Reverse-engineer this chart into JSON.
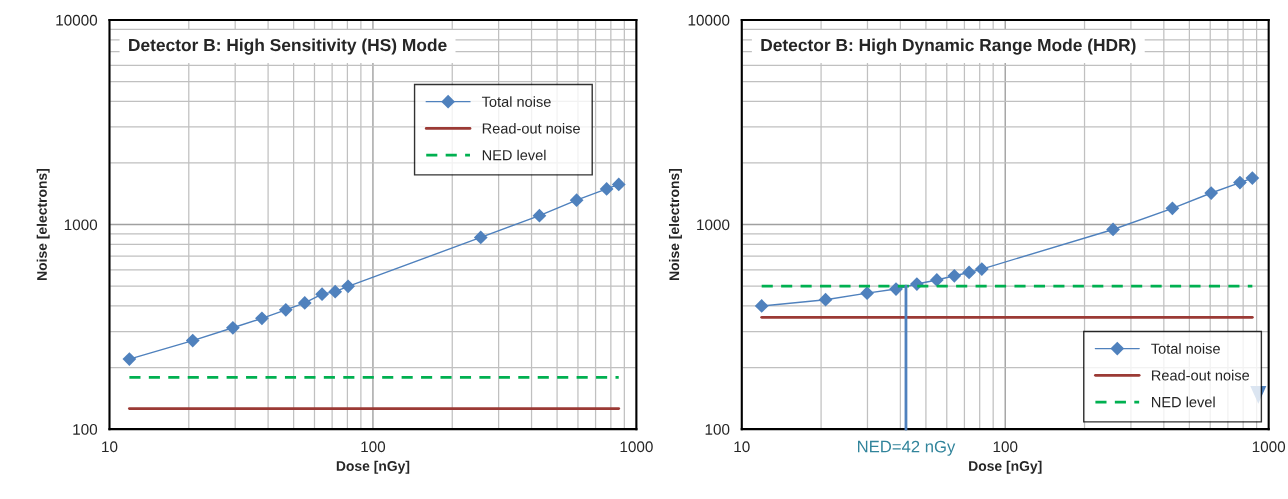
{
  "chart_data": [
    {
      "type": "line",
      "title": "Detector B: High Sensitivity (HS) Mode",
      "xlabel": "Dose [nGy]",
      "ylabel": "Noise [electrons]",
      "log": "xy",
      "xlim": [
        10,
        1000
      ],
      "xticks": [
        10,
        100,
        1000
      ],
      "ylim": [
        100,
        10000
      ],
      "yticks": [
        100,
        1000,
        10000
      ],
      "grid": true,
      "legend": "top right",
      "series": [
        {
          "name": "Total noise",
          "color": "#4f81bd",
          "marker": "diamond",
          "line_style": "solid",
          "x": [
            11.9,
            20.7,
            29.4,
            37.9,
            46.7,
            55.1,
            64.1,
            71.9,
            80.5,
            256.6,
            428.5,
            593,
            771,
            857
          ],
          "values": [
            220,
            271,
            313,
            348,
            383,
            414,
            457,
            470,
            499,
            865,
            1105,
            1315,
            1493,
            1570
          ]
        },
        {
          "name": "Read-out noise",
          "color": "#9b3a35",
          "marker": "none",
          "line_style": "solid",
          "x": [
            11.9,
            857
          ],
          "values": [
            126,
            126
          ]
        },
        {
          "name": "NED level",
          "color": "#00b050",
          "marker": "none",
          "line_style": "dashed",
          "x": [
            11.9,
            857
          ],
          "values": [
            179,
            179
          ]
        }
      ]
    },
    {
      "type": "line",
      "title": "Detector B: High Dynamic Range Mode (HDR)",
      "xlabel": "Dose [nGy]",
      "ylabel": "Noise [electrons]",
      "log": "xy",
      "xlim": [
        10,
        1000
      ],
      "xticks": [
        10,
        100,
        1000
      ],
      "ylim": [
        100,
        10000
      ],
      "yticks": [
        100,
        1000,
        10000
      ],
      "grid": true,
      "legend": "bottom right",
      "ref_lines": [
        {
          "axis": "x",
          "value": 42,
          "label": "NED=42 nGy",
          "color": "#4f81bd"
        }
      ],
      "series": [
        {
          "name": "Total noise",
          "color": "#4f81bd",
          "marker": "diamond",
          "line_style": "solid",
          "x": [
            11.9,
            20.8,
            29.9,
            38.5,
            46.2,
            55.0,
            64.1,
            72.9,
            81.5,
            256.6,
            431,
            605,
            778,
            867
          ],
          "values": [
            400,
            429,
            462,
            484,
            512,
            536,
            562,
            583,
            606,
            946,
            1200,
            1426,
            1603,
            1688
          ]
        },
        {
          "name": "Read-out noise",
          "color": "#9b3a35",
          "marker": "none",
          "line_style": "solid",
          "x": [
            11.9,
            867
          ],
          "values": [
            352,
            352
          ]
        },
        {
          "name": "NED level",
          "color": "#00b050",
          "marker": "none",
          "line_style": "dashed",
          "x": [
            11.9,
            867
          ],
          "values": [
            500,
            500
          ]
        }
      ]
    }
  ]
}
